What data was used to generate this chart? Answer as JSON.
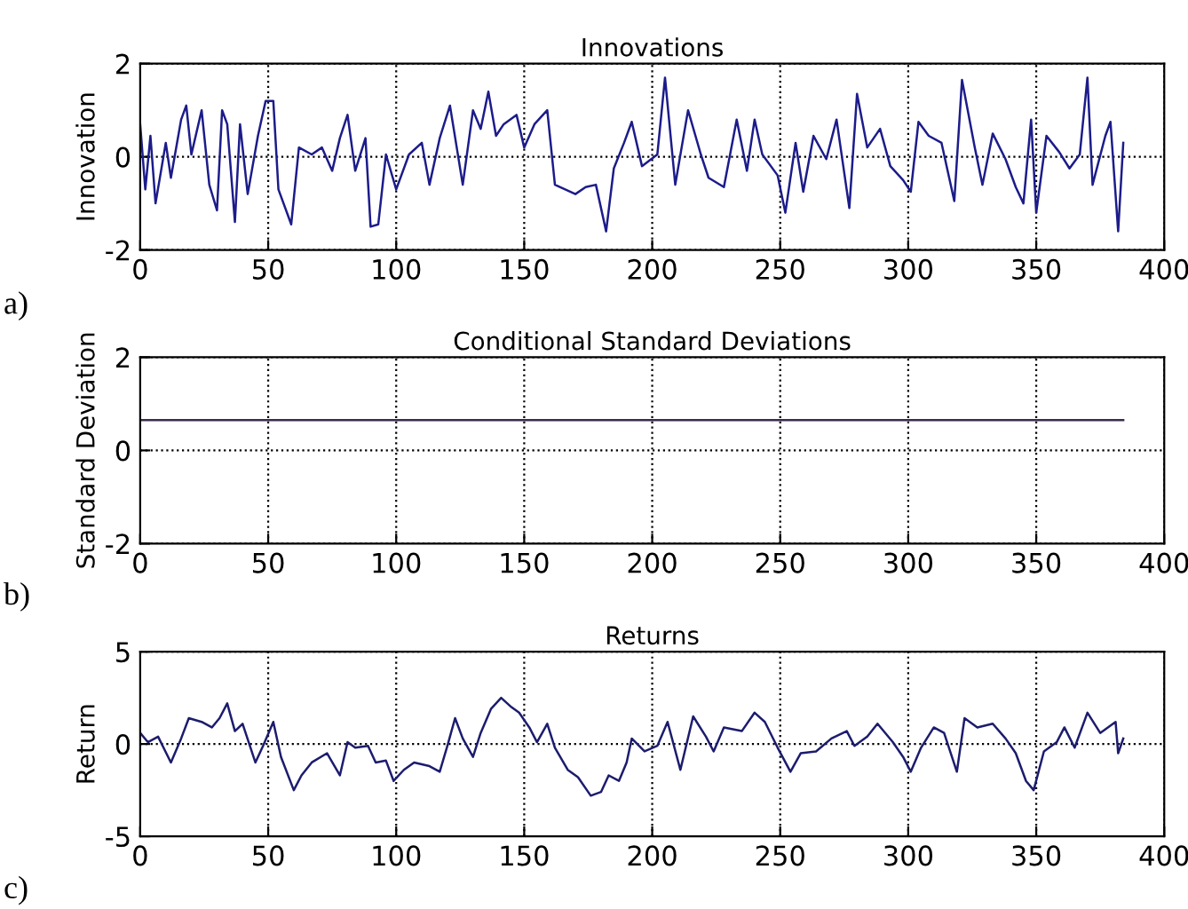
{
  "chart_data": [
    {
      "type": "line",
      "title": "Innovations",
      "ylabel": "Innovation",
      "annotations": [
        "a)"
      ],
      "xlim": [
        0,
        400
      ],
      "xticks": [
        0,
        50,
        100,
        150,
        200,
        250,
        300,
        350,
        400
      ],
      "ylim": [
        -2,
        2
      ],
      "yticks": [
        -2,
        0,
        2
      ],
      "grid": true,
      "marker": "none",
      "line_style": "solid",
      "series": [
        {
          "color": "#1c1c8a",
          "x": [
            0,
            2,
            4,
            6,
            10,
            12,
            16,
            18,
            20,
            24,
            27,
            30,
            32,
            34,
            37,
            39,
            42,
            46,
            49,
            52,
            54,
            59,
            62,
            67,
            71,
            75,
            78,
            81,
            84,
            88,
            90,
            93,
            96,
            100,
            105,
            110,
            113,
            117,
            121,
            126,
            130,
            133,
            136,
            139,
            142,
            147,
            150,
            154,
            159,
            162,
            166,
            170,
            174,
            178,
            182,
            185,
            189,
            192,
            196,
            202,
            205,
            209,
            214,
            219,
            222,
            228,
            233,
            237,
            240,
            243,
            249,
            252,
            256,
            259,
            263,
            268,
            272,
            277,
            280,
            284,
            289,
            293,
            298,
            301,
            304,
            308,
            313,
            318,
            321,
            326,
            329,
            333,
            338,
            342,
            345,
            348,
            350,
            354,
            359,
            363,
            367,
            370,
            372,
            377,
            379,
            382,
            384
          ],
          "values": [
            0.7,
            -0.7,
            0.45,
            -1.0,
            0.3,
            -0.45,
            0.8,
            1.1,
            0.05,
            1.0,
            -0.6,
            -1.15,
            1.0,
            0.7,
            -1.4,
            0.7,
            -0.8,
            0.45,
            1.2,
            1.2,
            -0.7,
            -1.45,
            0.2,
            0.05,
            0.2,
            -0.3,
            0.4,
            0.9,
            -0.3,
            0.4,
            -1.5,
            -1.45,
            0.05,
            -0.7,
            0.05,
            0.3,
            -0.6,
            0.4,
            1.1,
            -0.6,
            1.0,
            0.6,
            1.4,
            0.45,
            0.7,
            0.9,
            0.2,
            0.7,
            1.0,
            -0.6,
            -0.7,
            -0.8,
            -0.65,
            -0.6,
            -1.6,
            -0.25,
            0.3,
            0.75,
            -0.2,
            0.05,
            1.7,
            -0.6,
            1.0,
            0.05,
            -0.45,
            -0.65,
            0.8,
            -0.3,
            0.8,
            0.05,
            -0.4,
            -1.2,
            0.3,
            -0.75,
            0.45,
            -0.05,
            0.8,
            -1.1,
            1.35,
            0.2,
            0.6,
            -0.2,
            -0.5,
            -0.75,
            0.75,
            0.45,
            0.3,
            -0.95,
            1.65,
            0.2,
            -0.6,
            0.5,
            -0.05,
            -0.65,
            -1.0,
            0.8,
            -1.2,
            0.45,
            0.1,
            -0.25,
            0.05,
            1.7,
            -0.6,
            0.45,
            0.75,
            -1.6,
            0.3
          ]
        }
      ]
    },
    {
      "type": "line",
      "title": "Conditional Standard Deviations",
      "ylabel": "Standard Deviation",
      "annotations": [
        "b)"
      ],
      "xlim": [
        0,
        400
      ],
      "xticks": [
        0,
        50,
        100,
        150,
        200,
        250,
        300,
        350,
        400
      ],
      "ylim": [
        -2,
        2
      ],
      "yticks": [
        -2,
        0,
        2
      ],
      "grid": true,
      "marker": "none",
      "line_style": "solid",
      "series": [
        {
          "color": "#3c2a4c",
          "x": [
            0,
            384
          ],
          "values": [
            0.65,
            0.65
          ]
        }
      ]
    },
    {
      "type": "line",
      "title": "Returns",
      "ylabel": "Return",
      "annotations": [
        "c)"
      ],
      "xlim": [
        0,
        400
      ],
      "xticks": [
        0,
        50,
        100,
        150,
        200,
        250,
        300,
        350,
        400
      ],
      "ylim": [
        -5,
        5
      ],
      "yticks": [
        -5,
        0,
        5
      ],
      "grid": true,
      "marker": "none",
      "line_style": "solid",
      "series": [
        {
          "color": "#1c1c6e",
          "x": [
            0,
            3,
            7,
            12,
            16,
            19,
            24,
            28,
            31,
            34,
            37,
            40,
            45,
            48,
            52,
            55,
            60,
            63,
            67,
            73,
            78,
            81,
            84,
            89,
            92,
            96,
            99,
            103,
            107,
            113,
            117,
            120,
            123,
            126,
            130,
            133,
            137,
            141,
            145,
            148,
            152,
            155,
            159,
            162,
            167,
            171,
            176,
            180,
            183,
            187,
            190,
            192,
            197,
            202,
            206,
            211,
            216,
            221,
            224,
            228,
            235,
            240,
            244,
            249,
            254,
            258,
            264,
            270,
            276,
            279,
            284,
            288,
            294,
            298,
            301,
            305,
            310,
            314,
            319,
            322,
            327,
            333,
            338,
            342,
            346,
            349,
            353,
            358,
            361,
            365,
            370,
            375,
            381,
            382,
            384
          ],
          "values": [
            0.6,
            0.1,
            0.4,
            -1.0,
            0.3,
            1.4,
            1.2,
            0.9,
            1.4,
            2.2,
            0.7,
            1.1,
            -1.0,
            -0.1,
            1.2,
            -0.7,
            -2.5,
            -1.7,
            -1.0,
            -0.5,
            -1.7,
            0.1,
            -0.2,
            -0.1,
            -1.0,
            -0.9,
            -2.0,
            -1.4,
            -1.0,
            -1.2,
            -1.5,
            -0.1,
            1.4,
            0.3,
            -0.7,
            0.6,
            1.9,
            2.5,
            2.0,
            1.7,
            0.9,
            0.1,
            1.1,
            -0.2,
            -1.4,
            -1.8,
            -2.8,
            -2.6,
            -1.7,
            -2.0,
            -1.0,
            0.3,
            -0.4,
            -0.1,
            1.2,
            -1.4,
            1.5,
            0.4,
            -0.4,
            0.9,
            0.7,
            1.7,
            1.2,
            -0.2,
            -1.5,
            -0.5,
            -0.4,
            0.3,
            0.7,
            -0.1,
            0.4,
            1.1,
            0.1,
            -0.7,
            -1.5,
            -0.2,
            0.9,
            0.6,
            -1.5,
            1.4,
            0.9,
            1.1,
            0.3,
            -0.5,
            -2.0,
            -2.5,
            -0.4,
            0.1,
            0.9,
            -0.2,
            1.7,
            0.6,
            1.2,
            -0.5,
            0.3
          ]
        }
      ]
    }
  ]
}
